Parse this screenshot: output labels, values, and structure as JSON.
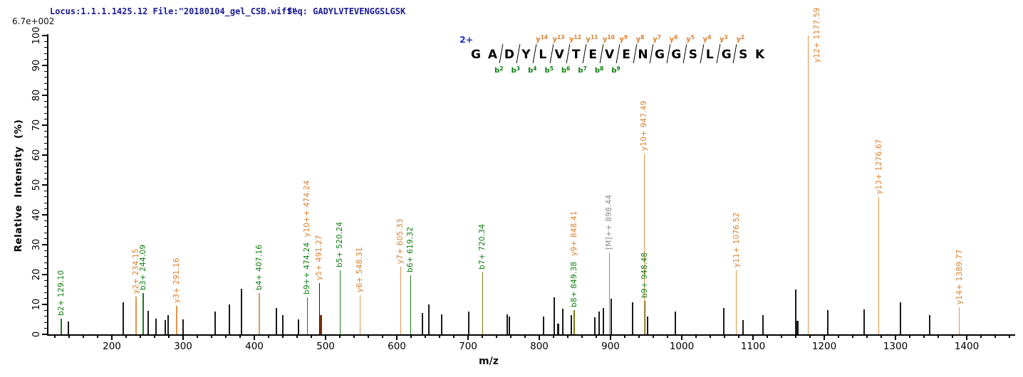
{
  "header": {
    "locus_file": "Locus:1.1.1.1425.12 File:\"20180104_gel_CSB.wiff\"",
    "seq_label": "Seq: GADYLVTEVENGGSLGSK",
    "intensity_scale": "6.7e+002"
  },
  "precursor_charge_label": "2+",
  "sequence": {
    "residues": [
      "G",
      "A",
      "D",
      "Y",
      "L",
      "V",
      "T",
      "E",
      "V",
      "E",
      "N",
      "G",
      "G",
      "S",
      "L",
      "G",
      "S",
      "K"
    ],
    "gaps": [
      {
        "i": 1,
        "b": "b2"
      },
      {
        "i": 2,
        "b": "b3"
      },
      {
        "i": 3,
        "y": "y14",
        "b": "b4"
      },
      {
        "i": 4,
        "y": "y13",
        "b": "b5"
      },
      {
        "i": 5,
        "y": "y12",
        "b": "b6"
      },
      {
        "i": 6,
        "y": "y11",
        "b": "b7"
      },
      {
        "i": 7,
        "y": "y10",
        "b": "b8"
      },
      {
        "i": 8,
        "y": "y9",
        "b": "b9"
      },
      {
        "i": 9,
        "y": "y8"
      },
      {
        "i": 10,
        "y": "y7"
      },
      {
        "i": 11,
        "y": "y6"
      },
      {
        "i": 12,
        "y": "y5"
      },
      {
        "i": 13,
        "y": "y4"
      },
      {
        "i": 14,
        "y": "y3"
      },
      {
        "i": 15,
        "y": "y2"
      }
    ]
  },
  "colors": {
    "header_text": "#1A1A99",
    "charge_blue": "#2233CC",
    "y_ion": "#DC7E2A",
    "y_peak": "#DF954E",
    "b_ion": "#0A7D0A",
    "b_peak": "#1F7A1F",
    "precursor": "#8C8C8C",
    "unmatched": "#1A1A1A",
    "olive_peak": "#7C7C10",
    "dark_overlap": "#7A2E08",
    "axis": "#000000"
  },
  "axes": {
    "x_label": "m/z",
    "y_label": "Relative  Intensity  (%)",
    "x_major_ticks": [
      200,
      300,
      400,
      500,
      600,
      700,
      800,
      900,
      1000,
      1100,
      1200,
      1300,
      1400
    ],
    "x_minor_step": 20,
    "y_major_ticks": [
      0,
      10,
      20,
      30,
      40,
      50,
      60,
      70,
      80,
      90,
      100
    ],
    "y_minor_step": 2
  },
  "chart_data": {
    "type": "bar",
    "subtype": "ms2-fragment-spectrum",
    "xlabel": "m/z",
    "ylabel": "Relative Intensity (%)",
    "xlim": [
      110,
      1465
    ],
    "ylim": [
      0,
      100
    ],
    "base_peak_intensity": "6.7e+002",
    "labeled_peaks": [
      {
        "mz": 129.1,
        "intensity": 5.2,
        "peak": "b_peak",
        "labels": [
          {
            "text": "b2+ 129.10",
            "color": "b_ion"
          }
        ]
      },
      {
        "mz": 234.15,
        "intensity": 12.6,
        "peak": "y_peak",
        "labels": [
          {
            "text": "y2+ 234.15",
            "color": "y_ion"
          }
        ]
      },
      {
        "mz": 244.09,
        "intensity": 13.9,
        "peak": "b_peak",
        "labels": [
          {
            "text": "b3+ 244.09",
            "color": "b_ion"
          }
        ]
      },
      {
        "mz": 291.16,
        "intensity": 9.5,
        "peak": "y_peak",
        "labels": [
          {
            "text": "y3+ 291.16",
            "color": "y_ion"
          }
        ]
      },
      {
        "mz": 407.16,
        "intensity": 13.8,
        "peak": "y_peak",
        "labels": [
          {
            "text": "b4+ 407.16",
            "color": "b_ion"
          }
        ]
      },
      {
        "mz": 474.24,
        "intensity": 12.4,
        "peak": "b_peak",
        "labels": [
          {
            "text": "b9++ 474.24",
            "color": "b_ion"
          },
          {
            "text": "y10++ 474.24",
            "color": "y_ion"
          }
        ]
      },
      {
        "mz": 491.27,
        "intensity": 17.2,
        "peak": "unmatched",
        "labels": [
          {
            "text": "y5+ 491.27",
            "color": "y_ion"
          }
        ]
      },
      {
        "mz": 520.24,
        "intensity": 21.5,
        "peak": "b_peak",
        "labels": [
          {
            "text": "b5+ 520.24",
            "color": "b_ion"
          }
        ]
      },
      {
        "mz": 548.31,
        "intensity": 13.0,
        "peak": "y_peak",
        "labels": [
          {
            "text": "y6+ 548.31",
            "color": "y_ion"
          }
        ]
      },
      {
        "mz": 605.33,
        "intensity": 22.7,
        "peak": "y_peak",
        "labels": [
          {
            "text": "y7+ 605.33",
            "color": "y_ion"
          }
        ]
      },
      {
        "mz": 619.32,
        "intensity": 19.8,
        "peak": "b_peak",
        "labels": [
          {
            "text": "b6+ 619.32",
            "color": "b_ion"
          }
        ]
      },
      {
        "mz": 720.34,
        "intensity": 20.8,
        "peak": "olive_peak",
        "labels": [
          {
            "text": "b7+ 720.34",
            "color": "b_ion"
          }
        ]
      },
      {
        "mz": 849.0,
        "intensity": 8.0,
        "peak": "olive_peak",
        "labels": [
          {
            "text": "b8+ 849.38",
            "color": "b_ion"
          },
          {
            "text": "y9+ 848.41",
            "color": "y_ion"
          }
        ]
      },
      {
        "mz": 898.44,
        "intensity": 27.5,
        "peak": "precursor",
        "labels": [
          {
            "text": "[M]++ 898.44",
            "color": "precursor"
          }
        ]
      },
      {
        "mz": 947.49,
        "intensity": 60.4,
        "peak": "y_peak",
        "labels": [
          {
            "text": "y10+ 947.49",
            "color": "y_ion"
          }
        ]
      },
      {
        "mz": 948.48,
        "intensity": 11.2,
        "peak": "b_peak",
        "labels": [
          {
            "text": "b9+ 948.48",
            "color": "b_ion"
          }
        ]
      },
      {
        "mz": 1076.52,
        "intensity": 21.5,
        "peak": "y_peak",
        "labels": [
          {
            "text": "y11+ 1076.52",
            "color": "y_ion"
          }
        ]
      },
      {
        "mz": 1177.59,
        "intensity": 100,
        "peak": "y_peak",
        "label_side": true,
        "labels": [
          {
            "text": "y12+ 1177.59",
            "color": "y_ion"
          }
        ]
      },
      {
        "mz": 1276.67,
        "intensity": 46.0,
        "peak": "y_peak",
        "labels": [
          {
            "text": "y13+ 1276.67",
            "color": "y_ion"
          }
        ]
      },
      {
        "mz": 1389.77,
        "intensity": 9.0,
        "peak": "y_peak",
        "labels": [
          {
            "text": "y14+ 1389.77",
            "color": "y_ion"
          }
        ]
      }
    ],
    "unlabeled_peaks": [
      {
        "mz": 139,
        "intensity": 4.4
      },
      {
        "mz": 216,
        "intensity": 10.7
      },
      {
        "mz": 251,
        "intensity": 7.8
      },
      {
        "mz": 262,
        "intensity": 5.2
      },
      {
        "mz": 275,
        "intensity": 4.7
      },
      {
        "mz": 279,
        "intensity": 6.4
      },
      {
        "mz": 300,
        "intensity": 5.0
      },
      {
        "mz": 345,
        "intensity": 7.6
      },
      {
        "mz": 365,
        "intensity": 10.0
      },
      {
        "mz": 382,
        "intensity": 15.3
      },
      {
        "mz": 431,
        "intensity": 8.8
      },
      {
        "mz": 440,
        "intensity": 6.4
      },
      {
        "mz": 462,
        "intensity": 5.0
      },
      {
        "mz": 493.6,
        "intensity": 6.4,
        "w": 3,
        "color": "dark_overlap"
      },
      {
        "mz": 636,
        "intensity": 7.2
      },
      {
        "mz": 645,
        "intensity": 10.0
      },
      {
        "mz": 663,
        "intensity": 6.7
      },
      {
        "mz": 701,
        "intensity": 7.6
      },
      {
        "mz": 755,
        "intensity": 6.7
      },
      {
        "mz": 758,
        "intensity": 6.0
      },
      {
        "mz": 806,
        "intensity": 6.0
      },
      {
        "mz": 821,
        "intensity": 12.4
      },
      {
        "mz": 826,
        "intensity": 3.6,
        "w": 3
      },
      {
        "mz": 833,
        "intensity": 8.6
      },
      {
        "mz": 845,
        "intensity": 6.4
      },
      {
        "mz": 878,
        "intensity": 5.6
      },
      {
        "mz": 884,
        "intensity": 7.6
      },
      {
        "mz": 890,
        "intensity": 8.8
      },
      {
        "mz": 901,
        "intensity": 12.0
      },
      {
        "mz": 931,
        "intensity": 10.7
      },
      {
        "mz": 952,
        "intensity": 6.0
      },
      {
        "mz": 991,
        "intensity": 7.6
      },
      {
        "mz": 1059,
        "intensity": 8.8
      },
      {
        "mz": 1086,
        "intensity": 4.8
      },
      {
        "mz": 1114,
        "intensity": 6.5
      },
      {
        "mz": 1160,
        "intensity": 15.0
      },
      {
        "mz": 1162,
        "intensity": 4.5,
        "w": 3
      },
      {
        "mz": 1205,
        "intensity": 8.2
      },
      {
        "mz": 1256,
        "intensity": 8.4
      },
      {
        "mz": 1307,
        "intensity": 10.7
      },
      {
        "mz": 1348,
        "intensity": 6.4
      }
    ]
  }
}
